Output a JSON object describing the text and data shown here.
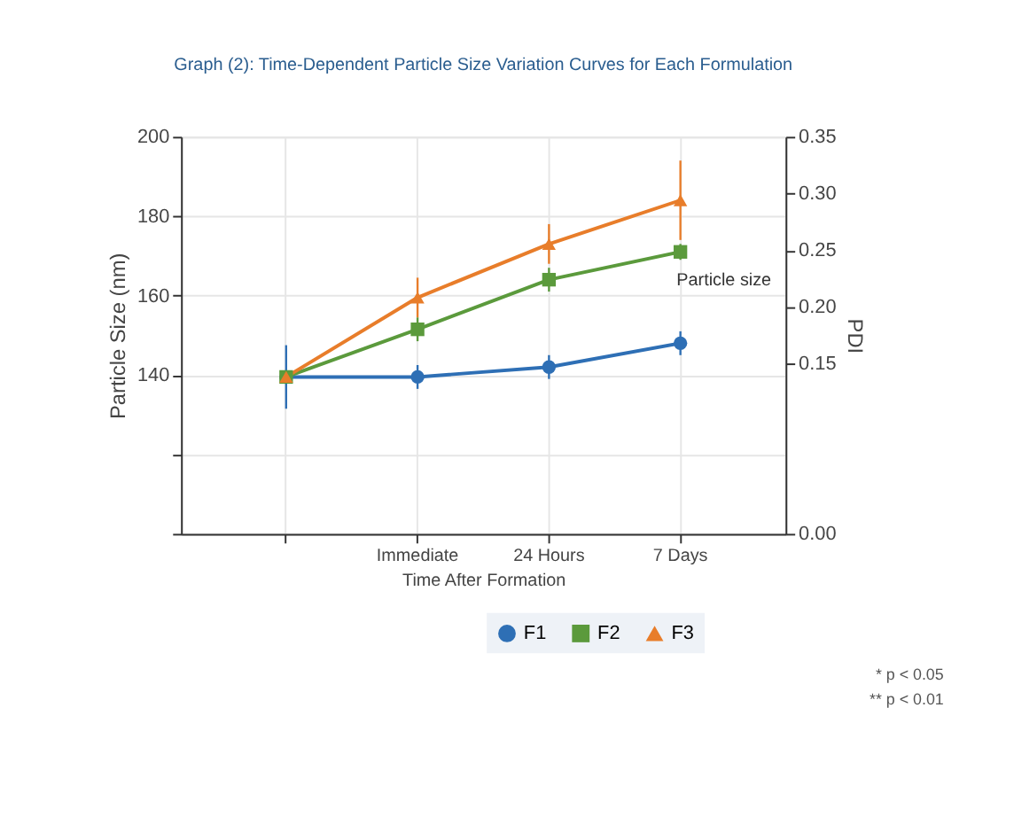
{
  "chart_data": {
    "type": "line",
    "title": "Graph (2): Time-Dependent Particle Size Variation Curves for Each Formulation",
    "xlabel": "Time After Formation",
    "ylabel": "Particle Size (nm)",
    "y2label": "PDI",
    "categories": [
      null,
      "Immediate",
      "24 Hours",
      "7 Days"
    ],
    "ylim": [
      100,
      200
    ],
    "yticks": [
      200,
      180,
      160,
      140,
      {
        "value": 120,
        "label": null
      },
      {
        "value": 100,
        "label": null
      }
    ],
    "y2lim": [
      0,
      0.35
    ],
    "y2ticks": [
      {
        "value": 0.35,
        "label": "0.35"
      },
      {
        "value": 0.3,
        "label": "0.30"
      },
      {
        "value": 0.25,
        "label": "0.25"
      },
      {
        "value": 0.2,
        "label": "0.20"
      },
      {
        "value": 0.15,
        "label": "0.15"
      },
      {
        "value": 0,
        "label": "0.00"
      }
    ],
    "series": [
      {
        "name": "F1",
        "color": "#2e6fb5",
        "marker": "circle",
        "values": [
          139.5,
          139.5,
          142,
          148
        ],
        "errors": [
          8,
          3,
          3,
          3
        ]
      },
      {
        "name": "F2",
        "color": "#5b9a3c",
        "marker": "square",
        "values": [
          139.5,
          151.5,
          164,
          171
        ],
        "errors": [
          null,
          3,
          3,
          2
        ]
      },
      {
        "name": "F3",
        "color": "#e87d2a",
        "marker": "triangle",
        "values": [
          139.5,
          159.5,
          173,
          184
        ],
        "errors": [
          null,
          5,
          5,
          10
        ]
      }
    ],
    "grid": true,
    "legend": "bottom right",
    "line_style": "solid",
    "annotations": [
      "Particle size",
      "* p < 0.05",
      "** p < 0.01"
    ]
  }
}
